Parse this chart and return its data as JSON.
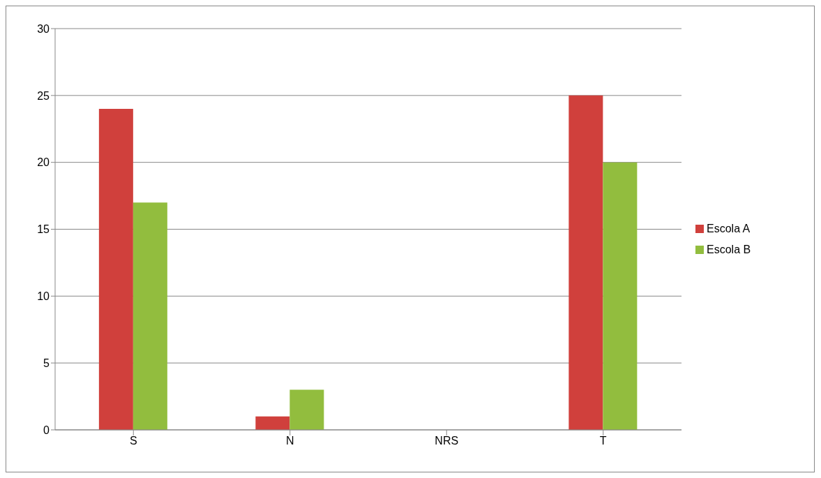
{
  "chart_data": {
    "type": "bar",
    "categories": [
      "S",
      "N",
      "NRS",
      "T"
    ],
    "series": [
      {
        "name": "Escola A",
        "color": "#d0403c",
        "values": [
          24,
          1,
          0,
          25
        ]
      },
      {
        "name": "Escola B",
        "color": "#92bd3e",
        "values": [
          17,
          3,
          0,
          20
        ]
      }
    ],
    "ylim": [
      0,
      30
    ],
    "yticks": [
      0,
      5,
      10,
      15,
      20,
      25,
      30
    ],
    "grid": "y",
    "legend": "right"
  }
}
